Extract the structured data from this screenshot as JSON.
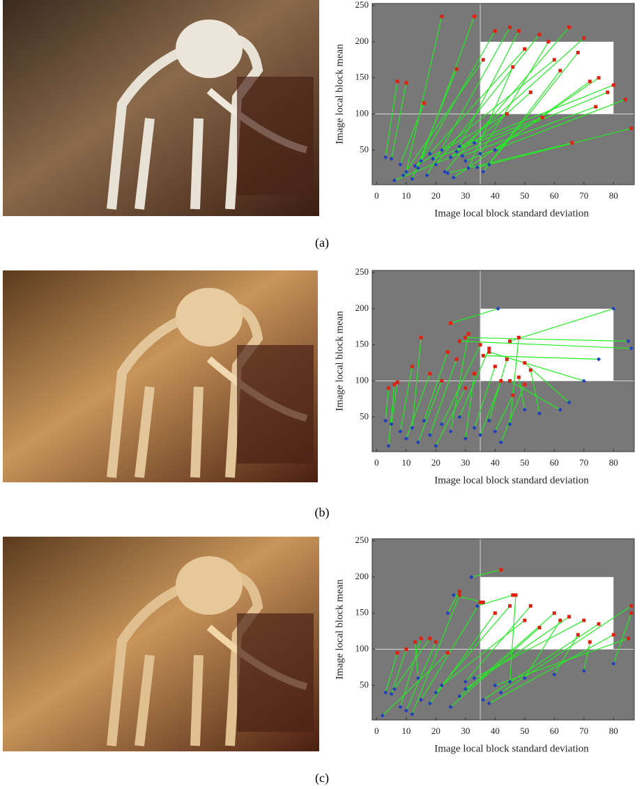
{
  "chart_data": [
    {
      "type": "scatter",
      "caption": "(a)",
      "xlabel": "Image local block standard deviation",
      "ylabel": "Image local block mean",
      "xlim": [
        -1.5,
        87
      ],
      "ylim": [
        2,
        253
      ],
      "xticks": [
        0,
        10,
        20,
        30,
        40,
        50,
        60,
        70,
        80
      ],
      "yticks": [
        50,
        100,
        150,
        200,
        250
      ],
      "background": "#787878",
      "grid_color": "#d8d8d8",
      "reference_x": 35,
      "reference_y": 100,
      "region": {
        "x": [
          35,
          80
        ],
        "y": [
          100,
          200
        ],
        "color": "#ffffff"
      },
      "line_color": "#22ee22",
      "series": [
        {
          "color": "#1f3fbf",
          "marker": "diamond",
          "x": [
            3,
            5,
            8,
            10,
            12,
            14,
            15,
            17,
            18,
            20,
            22,
            23,
            25,
            26,
            28,
            30,
            31,
            33,
            35,
            36,
            38,
            40,
            6,
            9,
            13,
            19,
            24,
            29,
            34,
            27
          ],
          "y": [
            40,
            38,
            30,
            20,
            10,
            25,
            35,
            15,
            45,
            30,
            50,
            20,
            40,
            12,
            55,
            35,
            25,
            60,
            45,
            20,
            30,
            50,
            8,
            15,
            28,
            38,
            18,
            42,
            26,
            48
          ]
        },
        {
          "color": "#dd2211",
          "marker": "square",
          "x": [
            7,
            10,
            16,
            22,
            27,
            33,
            40,
            45,
            50,
            55,
            60,
            65,
            70,
            75,
            80,
            84,
            46,
            52,
            58,
            62,
            68,
            72,
            78,
            36,
            44,
            56,
            66,
            74,
            86,
            48
          ],
          "y": [
            145,
            143,
            115,
            235,
            162,
            235,
            215,
            220,
            190,
            210,
            175,
            220,
            205,
            150,
            140,
            120,
            165,
            130,
            200,
            160,
            185,
            145,
            130,
            175,
            100,
            95,
            60,
            110,
            80,
            215
          ]
        }
      ]
    },
    {
      "type": "scatter",
      "caption": "(b)",
      "xlabel": "Image local block standard deviation",
      "ylabel": "Image local block mean",
      "xlim": [
        -1.5,
        87
      ],
      "ylim": [
        2,
        253
      ],
      "xticks": [
        0,
        10,
        20,
        30,
        40,
        50,
        60,
        70,
        80
      ],
      "yticks": [
        50,
        100,
        150,
        200,
        250
      ],
      "background": "#787878",
      "grid_color": "#d8d8d8",
      "reference_x": 35,
      "reference_y": 100,
      "region": {
        "x": [
          35,
          80
        ],
        "y": [
          100,
          200
        ],
        "color": "#ffffff"
      },
      "line_color": "#22ee22",
      "series": [
        {
          "color": "#1f3fbf",
          "marker": "diamond",
          "x": [
            3,
            5,
            4,
            8,
            10,
            12,
            14,
            16,
            18,
            20,
            22,
            25,
            28,
            30,
            33,
            35,
            38,
            40,
            42,
            45,
            80,
            85,
            86,
            75,
            70,
            62,
            65,
            55,
            50,
            41
          ],
          "y": [
            45,
            40,
            10,
            30,
            20,
            35,
            15,
            45,
            25,
            10,
            40,
            30,
            50,
            20,
            35,
            25,
            45,
            30,
            15,
            40,
            200,
            155,
            145,
            130,
            100,
            60,
            70,
            55,
            60,
            200
          ]
        },
        {
          "color": "#dd2211",
          "marker": "square",
          "x": [
            4,
            7,
            6,
            12,
            18,
            15,
            22,
            24,
            27,
            30,
            35,
            31,
            38,
            33,
            40,
            42,
            44,
            46,
            50,
            48,
            45,
            30,
            28,
            36,
            38,
            45,
            50,
            52,
            48,
            25
          ],
          "y": [
            90,
            98,
            95,
            120,
            110,
            160,
            100,
            140,
            130,
            90,
            150,
            165,
            145,
            110,
            120,
            100,
            130,
            80,
            95,
            160,
            155,
            160,
            155,
            135,
            140,
            100,
            125,
            115,
            105,
            180
          ]
        }
      ]
    },
    {
      "type": "scatter",
      "caption": "(c)",
      "xlabel": "Image local block standard deviation",
      "ylabel": "Image local block mean",
      "xlim": [
        -1.5,
        87
      ],
      "ylim": [
        2,
        253
      ],
      "xticks": [
        0,
        10,
        20,
        30,
        40,
        50,
        60,
        70,
        80
      ],
      "yticks": [
        50,
        100,
        150,
        200,
        250
      ],
      "background": "#787878",
      "grid_color": "#d8d8d8",
      "reference_x": 35,
      "reference_y": 100,
      "region": {
        "x": [
          35,
          80
        ],
        "y": [
          100,
          200
        ],
        "color": "#ffffff"
      },
      "line_color": "#22ee22",
      "series": [
        {
          "color": "#1f3fbf",
          "marker": "diamond",
          "x": [
            3,
            5,
            8,
            10,
            12,
            15,
            18,
            20,
            22,
            25,
            28,
            30,
            33,
            36,
            38,
            40,
            42,
            45,
            2,
            6,
            14,
            24,
            26,
            32,
            34,
            30,
            50,
            60,
            70,
            80
          ],
          "y": [
            40,
            38,
            20,
            15,
            10,
            30,
            25,
            40,
            50,
            20,
            35,
            45,
            60,
            30,
            25,
            50,
            40,
            55,
            8,
            45,
            60,
            150,
            175,
            200,
            160,
            55,
            60,
            65,
            70,
            80
          ]
        },
        {
          "color": "#dd2211",
          "marker": "square",
          "x": [
            7,
            10,
            15,
            20,
            28,
            35,
            40,
            45,
            50,
            55,
            60,
            65,
            70,
            75,
            80,
            85,
            86,
            47,
            24,
            18,
            13,
            28,
            36,
            42,
            46,
            52,
            62,
            68,
            72,
            86
          ],
          "y": [
            95,
            100,
            115,
            110,
            175,
            165,
            150,
            160,
            140,
            130,
            150,
            145,
            140,
            135,
            120,
            115,
            160,
            175,
            95,
            115,
            110,
            180,
            165,
            210,
            175,
            160,
            140,
            120,
            110,
            150
          ]
        }
      ]
    }
  ]
}
